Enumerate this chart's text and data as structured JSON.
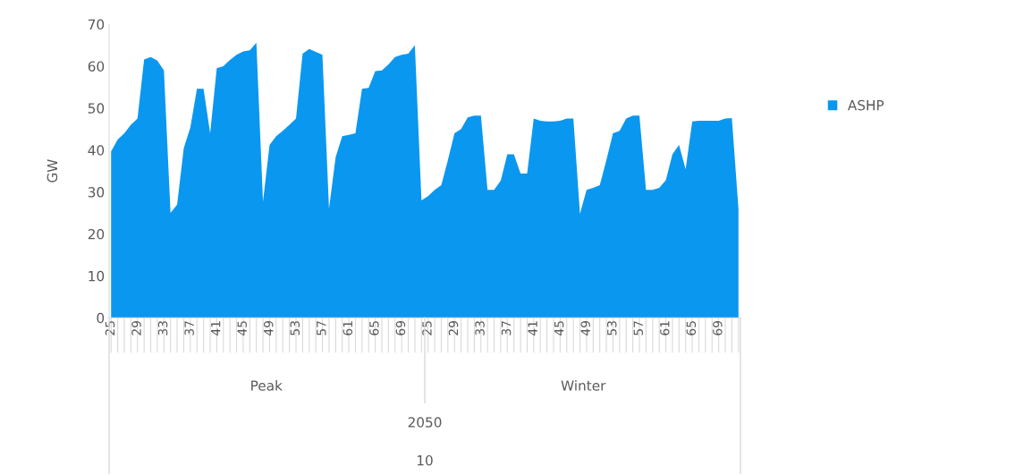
{
  "chart_data": {
    "type": "area",
    "ylabel": "GW",
    "ylim": [
      0,
      70
    ],
    "yticks": [
      0,
      10,
      20,
      30,
      40,
      50,
      60,
      70
    ],
    "grid": false,
    "legend": "right",
    "categories": [
      "25",
      null,
      null,
      null,
      "29",
      null,
      null,
      null,
      "33",
      null,
      null,
      null,
      "37",
      null,
      null,
      null,
      "41",
      null,
      null,
      null,
      "45",
      null,
      null,
      null,
      "49",
      null,
      null,
      null,
      "53",
      null,
      null,
      null,
      "57",
      null,
      null,
      null,
      "61",
      null,
      null,
      null,
      "65",
      null,
      null,
      null,
      "69",
      null,
      null,
      null,
      "25",
      null,
      null,
      null,
      "29",
      null,
      null,
      null,
      "33",
      null,
      null,
      null,
      "37",
      null,
      null,
      null,
      "41",
      null,
      null,
      null,
      "45",
      null,
      null,
      null,
      "49",
      null,
      null,
      null,
      "53",
      null,
      null,
      null,
      "57",
      null,
      null,
      null,
      "61",
      null,
      null,
      null,
      "65",
      null,
      null,
      null,
      "69",
      null,
      null,
      null
    ],
    "series": [
      {
        "name": "ASHP",
        "color": "#0a97f0",
        "values": [
          39.7,
          42.5,
          44,
          46,
          47.5,
          61.6,
          62.2,
          61.3,
          59,
          25,
          27,
          40.4,
          45.4,
          54.6,
          54.6,
          44,
          59.5,
          60,
          61.5,
          62.7,
          63.5,
          63.8,
          65.6,
          27.7,
          41.2,
          43.3,
          44.6,
          46,
          47.5,
          63,
          64.1,
          63.4,
          62.7,
          26,
          38.3,
          43.3,
          43.6,
          44,
          54.6,
          54.8,
          58.8,
          59,
          60.4,
          62.2,
          62.7,
          63,
          65,
          28,
          29,
          30.5,
          31.6,
          37.6,
          44,
          45,
          47.8,
          48.2,
          48.2,
          30.5,
          30.5,
          32.7,
          39,
          39,
          34.4,
          34.4,
          47.5,
          47,
          46.8,
          46.8,
          47,
          47.5,
          47.5,
          24.8,
          30.5,
          31,
          31.6,
          37.6,
          44,
          44.6,
          47.5,
          48.2,
          48.2,
          30.5,
          30.5,
          31,
          32.8,
          39,
          41.2,
          35.4,
          46.8,
          47,
          47,
          47,
          47,
          47.5,
          47.6,
          26
        ]
      }
    ],
    "annotations": [
      "Peak",
      "Winter",
      "2050",
      "10"
    ]
  }
}
